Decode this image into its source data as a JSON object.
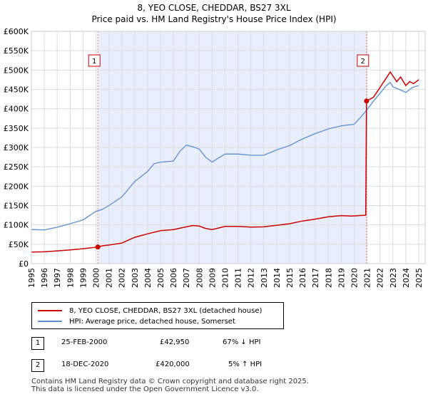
{
  "title_line1": "8, YEO CLOSE, CHEDDAR, BS27 3XL",
  "title_line2": "Price paid vs. HM Land Registry's House Price Index (HPI)",
  "chart_data": {
    "type": "line",
    "x_range": [
      1995,
      2025.5
    ],
    "y_range": [
      0,
      600000
    ],
    "y_ticks": [
      0,
      50000,
      100000,
      150000,
      200000,
      250000,
      300000,
      350000,
      400000,
      450000,
      500000,
      550000,
      600000
    ],
    "y_tick_labels": [
      "£0",
      "£50K",
      "£100K",
      "£150K",
      "£200K",
      "£250K",
      "£300K",
      "£350K",
      "£400K",
      "£450K",
      "£500K",
      "£550K",
      "£600K"
    ],
    "x_ticks": [
      1995,
      1996,
      1997,
      1998,
      1999,
      2000,
      2001,
      2002,
      2003,
      2004,
      2005,
      2006,
      2007,
      2008,
      2009,
      2010,
      2011,
      2012,
      2013,
      2014,
      2015,
      2016,
      2017,
      2018,
      2019,
      2020,
      2021,
      2022,
      2023,
      2024,
      2025
    ],
    "x_tick_labels": [
      "1995",
      "1996",
      "1997",
      "1998",
      "1999",
      "2000",
      "2001",
      "2002",
      "2003",
      "2004",
      "2005",
      "2006",
      "2007",
      "2008",
      "2009",
      "2010",
      "2011",
      "2012",
      "2013",
      "2014",
      "2015",
      "2016",
      "2017",
      "2018",
      "2019",
      "2020",
      "2021",
      "2022",
      "2023",
      "2024",
      "2025"
    ],
    "grid": true,
    "series": [
      {
        "name": "8, YEO CLOSE, CHEDDAR, BS27 3XL (detached house)",
        "color": "#cc0000",
        "points": [
          [
            1995,
            30000
          ],
          [
            1996,
            30500
          ],
          [
            1997,
            33000
          ],
          [
            1998,
            35500
          ],
          [
            1999,
            38500
          ],
          [
            2000.15,
            42950
          ],
          [
            2000.5,
            46000
          ],
          [
            2001,
            48000
          ],
          [
            2002,
            53000
          ],
          [
            2003,
            68000
          ],
          [
            2004,
            77000
          ],
          [
            2005,
            85000
          ],
          [
            2006,
            88000
          ],
          [
            2007,
            95000
          ],
          [
            2007.5,
            98500
          ],
          [
            2008,
            97000
          ],
          [
            2008.5,
            91000
          ],
          [
            2009,
            88000
          ],
          [
            2009.5,
            92000
          ],
          [
            2010,
            96000
          ],
          [
            2011,
            96000
          ],
          [
            2012,
            94500
          ],
          [
            2013,
            95000
          ],
          [
            2014,
            99000
          ],
          [
            2015,
            103000
          ],
          [
            2016,
            110000
          ],
          [
            2017,
            115000
          ],
          [
            2018,
            121000
          ],
          [
            2019,
            124000
          ],
          [
            2019.8,
            123000
          ],
          [
            2020.9,
            125000
          ],
          [
            2020.96,
            420000
          ],
          [
            2021.5,
            430000
          ],
          [
            2022,
            455000
          ],
          [
            2022.5,
            480000
          ],
          [
            2022.8,
            495000
          ],
          [
            2023,
            485000
          ],
          [
            2023.3,
            470000
          ],
          [
            2023.6,
            482000
          ],
          [
            2024,
            460000
          ],
          [
            2024.3,
            470000
          ],
          [
            2024.6,
            465000
          ],
          [
            2025,
            475000
          ]
        ]
      },
      {
        "name": "HPI: Average price, detached house, Somerset",
        "color": "#5b8fd4",
        "points": [
          [
            1995,
            88000
          ],
          [
            1996,
            87000
          ],
          [
            1997,
            94000
          ],
          [
            1998,
            103000
          ],
          [
            1999,
            113000
          ],
          [
            2000,
            135000
          ],
          [
            2000.5,
            140000
          ],
          [
            2001,
            150000
          ],
          [
            2002,
            172000
          ],
          [
            2003,
            212000
          ],
          [
            2004,
            238000
          ],
          [
            2004.5,
            258000
          ],
          [
            2005,
            262000
          ],
          [
            2006,
            265000
          ],
          [
            2006.5,
            290000
          ],
          [
            2007,
            306000
          ],
          [
            2007.5,
            302000
          ],
          [
            2008,
            296000
          ],
          [
            2008.5,
            275000
          ],
          [
            2009,
            262000
          ],
          [
            2009.5,
            273000
          ],
          [
            2010,
            283000
          ],
          [
            2011,
            283000
          ],
          [
            2012,
            280000
          ],
          [
            2013,
            280000
          ],
          [
            2014,
            294000
          ],
          [
            2015,
            305000
          ],
          [
            2016,
            322000
          ],
          [
            2017,
            336000
          ],
          [
            2018,
            348000
          ],
          [
            2019,
            356000
          ],
          [
            2020,
            360000
          ],
          [
            2020.5,
            378000
          ],
          [
            2021,
            398000
          ],
          [
            2021.5,
            420000
          ],
          [
            2022,
            440000
          ],
          [
            2022.5,
            460000
          ],
          [
            2022.8,
            468000
          ],
          [
            2023,
            457000
          ],
          [
            2023.5,
            450000
          ],
          [
            2024,
            442000
          ],
          [
            2024.5,
            455000
          ],
          [
            2025,
            460000
          ]
        ]
      }
    ],
    "annotations": [
      {
        "label": "1",
        "x": 2000.15,
        "price": 42950
      },
      {
        "label": "2",
        "x": 2020.96,
        "price": 420000
      }
    ]
  },
  "legend": {
    "series1": "8, YEO CLOSE, CHEDDAR, BS27 3XL (detached house)",
    "series2": "HPI: Average price, detached house, Somerset"
  },
  "sales": [
    {
      "num": "1",
      "date": "25-FEB-2000",
      "price": "£42,950",
      "hpi": "67% ↓ HPI"
    },
    {
      "num": "2",
      "date": "18-DEC-2020",
      "price": "£420,000",
      "hpi": "5% ↑ HPI"
    }
  ],
  "footer_line1": "Contains HM Land Registry data © Crown copyright and database right 2025.",
  "footer_line2": "This data is licensed under the Open Government Licence v3.0."
}
